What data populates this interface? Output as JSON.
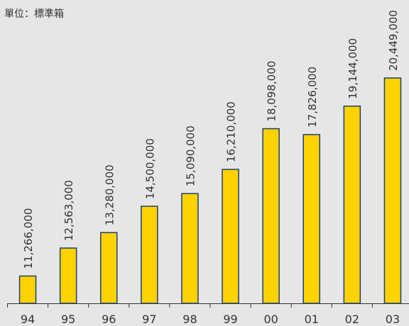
{
  "chart_data": {
    "type": "bar",
    "subtitle": "單位：標準箱",
    "categories": [
      "94",
      "95",
      "96",
      "97",
      "98",
      "99",
      "00",
      "01",
      "02",
      "03"
    ],
    "values": [
      11266000,
      12563000,
      13280000,
      14500000,
      15090000,
      16210000,
      18098000,
      17826000,
      19144000,
      20449000
    ],
    "value_labels": [
      "11,266,000",
      "12,563,000",
      "13,280,000",
      "14,500,000",
      "15,090,000",
      "16,210,000",
      "18,098,000",
      "17,826,000",
      "19,144,000",
      "20,449,000"
    ],
    "color": "#ffd200",
    "edge_color": "#1f3f73",
    "ylim": [
      10000000,
      24000000
    ]
  }
}
